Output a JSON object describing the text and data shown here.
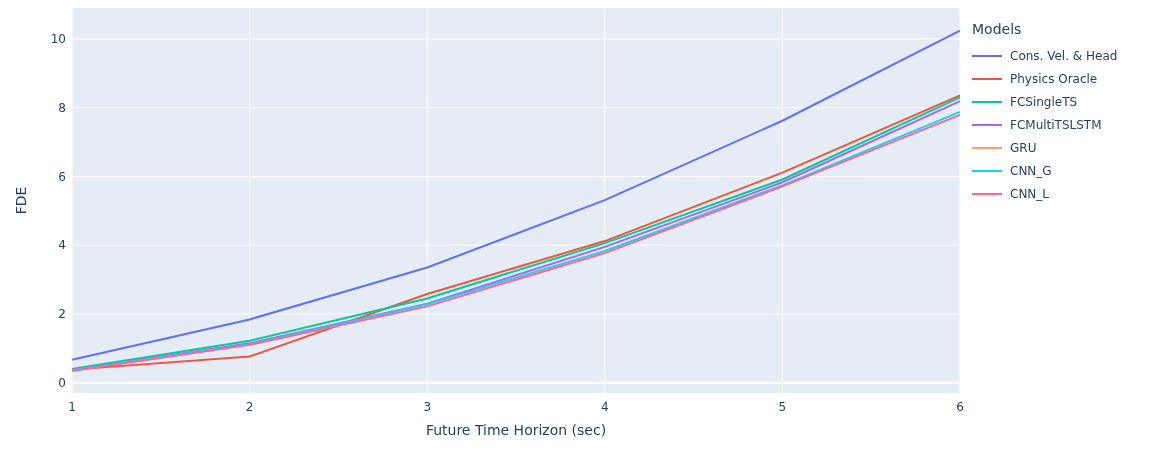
{
  "chart_data": {
    "type": "line",
    "xlabel": "Future Time Horizon (sec)",
    "ylabel": "FDE",
    "legend_title": "Models",
    "legend": "right",
    "x": [
      1,
      2,
      3,
      4,
      5,
      6
    ],
    "xlim": [
      1,
      6
    ],
    "xticks": [
      1,
      2,
      3,
      4,
      5,
      6
    ],
    "ylim": [
      -0.3,
      10.9
    ],
    "yticks": [
      0,
      2,
      4,
      6,
      8,
      10
    ],
    "grid": true,
    "marker": "none",
    "line_style": "solid",
    "series": [
      {
        "name": "Cons. Vel. & Head",
        "color": "#636efa",
        "values": [
          0.67,
          1.84,
          3.35,
          5.31,
          7.62,
          10.24
        ]
      },
      {
        "name": "Physics Oracle",
        "color": "#ef553b",
        "values": [
          0.38,
          0.76,
          2.58,
          4.12,
          6.11,
          8.36
        ]
      },
      {
        "name": "FCSingleTS",
        "color": "#00cc96",
        "values": [
          0.4,
          1.22,
          2.45,
          4.06,
          5.91,
          8.3
        ]
      },
      {
        "name": "FCMultiTSLSTM",
        "color": "#ab63fa",
        "values": [
          0.37,
          1.15,
          2.3,
          3.95,
          5.83,
          8.19
        ]
      },
      {
        "name": "GRU",
        "color": "#ffa15a",
        "values": [
          null,
          null,
          null,
          null,
          null,
          null
        ]
      },
      {
        "name": "CNN_G",
        "color": "#19d3f3",
        "values": [
          0.36,
          1.12,
          2.28,
          3.83,
          5.74,
          7.88
        ]
      },
      {
        "name": "CNN_L",
        "color": "#ff6692",
        "values": [
          0.34,
          1.1,
          2.22,
          3.77,
          5.71,
          7.79
        ]
      }
    ]
  }
}
